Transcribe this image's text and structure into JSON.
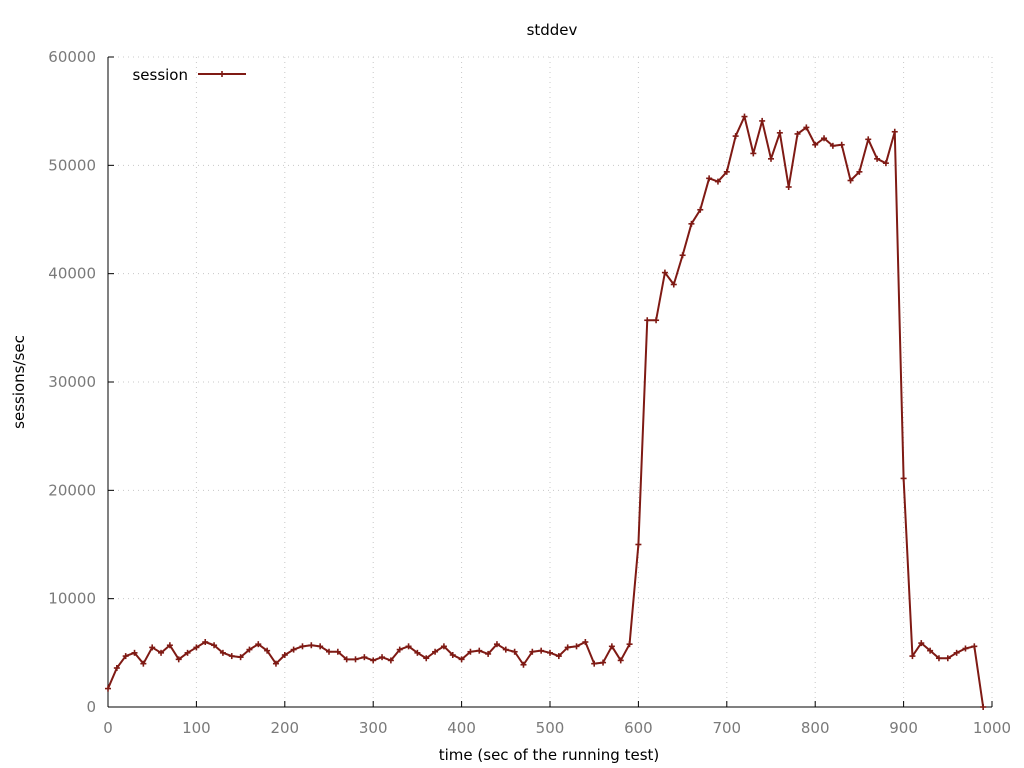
{
  "chart_data": {
    "type": "line",
    "title": "stddev",
    "xlabel": "time (sec of the running test)",
    "ylabel": "sessions/sec",
    "xlim": [
      0,
      1000
    ],
    "ylim": [
      0,
      60000
    ],
    "xticks": [
      0,
      100,
      200,
      300,
      400,
      500,
      600,
      700,
      800,
      900,
      1000
    ],
    "yticks": [
      0,
      10000,
      20000,
      30000,
      40000,
      50000,
      60000
    ],
    "grid": true,
    "legend_position": "top-left",
    "series": [
      {
        "name": "session",
        "color": "#7f1a14",
        "marker": "cross",
        "x": [
          0,
          10,
          20,
          30,
          40,
          50,
          60,
          70,
          80,
          90,
          100,
          110,
          120,
          130,
          140,
          150,
          160,
          170,
          180,
          190,
          200,
          210,
          220,
          230,
          240,
          250,
          260,
          270,
          280,
          290,
          300,
          310,
          320,
          330,
          340,
          350,
          360,
          370,
          380,
          390,
          400,
          410,
          420,
          430,
          440,
          450,
          460,
          470,
          480,
          490,
          500,
          510,
          520,
          530,
          540,
          550,
          560,
          570,
          580,
          590,
          600,
          610,
          620,
          630,
          640,
          650,
          660,
          670,
          680,
          690,
          700,
          710,
          720,
          730,
          740,
          750,
          760,
          770,
          780,
          790,
          800,
          810,
          820,
          830,
          840,
          850,
          860,
          870,
          880,
          890,
          900,
          910,
          920,
          930,
          940,
          950,
          960,
          970,
          980,
          990
        ],
        "y": [
          1700,
          3600,
          4700,
          5000,
          4000,
          5500,
          5000,
          5700,
          4400,
          5000,
          5500,
          6000,
          5700,
          5000,
          4700,
          4600,
          5300,
          5800,
          5200,
          4000,
          4800,
          5300,
          5600,
          5700,
          5600,
          5100,
          5100,
          4400,
          4400,
          4600,
          4300,
          4600,
          4300,
          5300,
          5600,
          5000,
          4500,
          5100,
          5600,
          4800,
          4400,
          5100,
          5200,
          4900,
          5800,
          5300,
          5100,
          3900,
          5100,
          5200,
          5000,
          4700,
          5500,
          5600,
          6000,
          4000,
          4100,
          5600,
          4300,
          5800,
          15000,
          35700,
          35700,
          40100,
          39000,
          41700,
          44600,
          45900,
          48800,
          48500,
          49400,
          52700,
          54500,
          51100,
          54100,
          50600,
          53000,
          48000,
          52900,
          53500,
          51900,
          52500,
          51800,
          51900,
          48600,
          49400,
          52400,
          50600,
          50200,
          53100,
          21100,
          4700,
          5900,
          5200,
          4500,
          4500,
          5000,
          5400,
          5600,
          0
        ]
      }
    ]
  }
}
